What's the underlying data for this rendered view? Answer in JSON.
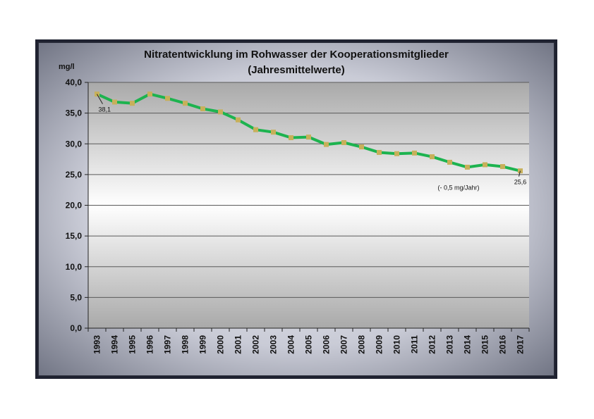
{
  "chart_data": {
    "type": "line",
    "title_line1": "Nitratentwicklung im Rohwasser der Kooperationsmitglieder",
    "title_line2": "(Jahresmittelwerte)",
    "ylabel": "mg/l",
    "xlabel": "",
    "ylim": [
      0,
      40
    ],
    "y_ticks": [
      "0,0",
      "5,0",
      "10,0",
      "15,0",
      "20,0",
      "25,0",
      "30,0",
      "35,0",
      "40,0"
    ],
    "categories": [
      "1993",
      "1994",
      "1995",
      "1996",
      "1997",
      "1998",
      "1999",
      "2000",
      "2001",
      "2002",
      "2003",
      "2004",
      "2005",
      "2006",
      "2007",
      "2008",
      "2009",
      "2010",
      "2011",
      "2012",
      "2013",
      "2014",
      "2015",
      "2016",
      "2017"
    ],
    "series": [
      {
        "values": [
          38.1,
          36.8,
          36.6,
          38.1,
          37.4,
          36.6,
          35.7,
          35.2,
          33.9,
          32.3,
          31.9,
          31.0,
          31.1,
          29.9,
          30.2,
          29.5,
          28.6,
          28.4,
          28.5,
          27.9,
          27.0,
          26.2,
          26.6,
          26.3,
          25.6
        ],
        "color": "#1db34f",
        "marker_color": "#c7b05a"
      }
    ],
    "annotations": [
      {
        "text": "38,1",
        "category": "1993"
      },
      {
        "text": "25,6",
        "category": "2017"
      },
      {
        "text": "(- 0,5 mg/Jahr)",
        "category": "2013"
      }
    ],
    "grid": true,
    "legend": "none"
  }
}
